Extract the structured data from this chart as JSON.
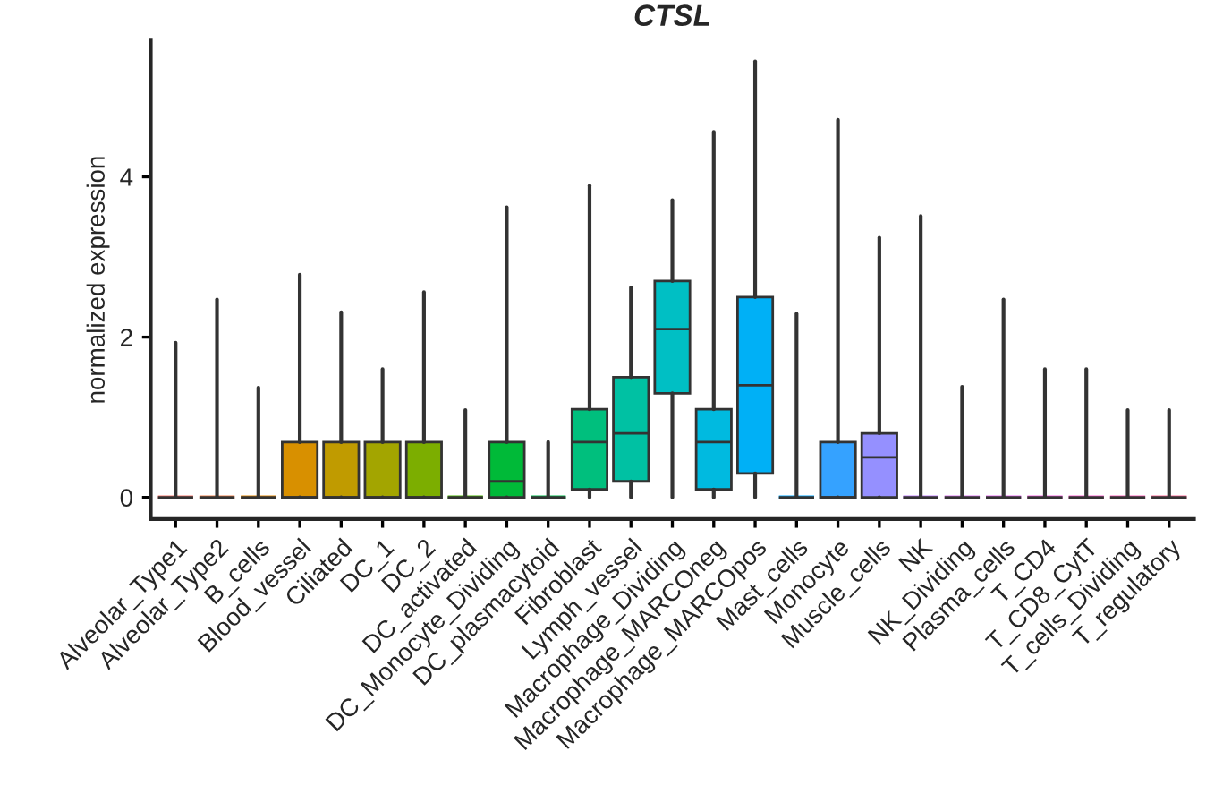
{
  "chart_data": {
    "type": "box",
    "title": "CTSL",
    "ylabel": "normalized expression",
    "categories": [
      "Alveolar_Type1",
      "Alveolar_Type2",
      "B_cells",
      "Blood_vessel",
      "Ciliated",
      "DC_1",
      "DC_2",
      "DC_activated",
      "DC_Monocyte_Dividing",
      "DC_plasmacytoid",
      "Fibroblast",
      "Lymph_vessel",
      "Macrophage_Dividing",
      "Macrophage_MARCOneg",
      "Macrophage_MARCOpos",
      "Mast_cells",
      "Monocyte",
      "Muscle_cells",
      "NK",
      "NK_Dividing",
      "Plasma_cells",
      "T_CD4",
      "T_CD8_CytT",
      "T_cells_Dividing",
      "T_regulatory"
    ],
    "colors": [
      "#f8766d",
      "#ef7f49",
      "#e58700",
      "#d89000",
      "#c09b00",
      "#a3a500",
      "#7cae00",
      "#49b500",
      "#00ba38",
      "#00bb4e",
      "#00bf7d",
      "#00c1a3",
      "#00bfc4",
      "#00bae0",
      "#00b0f6",
      "#00a6ff",
      "#35a2ff",
      "#9590ff",
      "#c280ff",
      "#de77f3",
      "#e76bf3",
      "#f564e3",
      "#fd61d1",
      "#ff62bc",
      "#ff6a98"
    ],
    "boxes": [
      {
        "low": 0,
        "q1": 0,
        "median": 0,
        "q3": 0,
        "high": 1.93
      },
      {
        "low": 0,
        "q1": 0,
        "median": 0,
        "q3": 0,
        "high": 2.47
      },
      {
        "low": 0,
        "q1": 0,
        "median": 0,
        "q3": 0,
        "high": 1.37
      },
      {
        "low": 0,
        "q1": 0,
        "median": 0,
        "q3": 0.69,
        "high": 2.78
      },
      {
        "low": 0,
        "q1": 0,
        "median": 0,
        "q3": 0.69,
        "high": 2.31
      },
      {
        "low": 0,
        "q1": 0,
        "median": 0,
        "q3": 0.69,
        "high": 1.6
      },
      {
        "low": 0,
        "q1": 0,
        "median": 0,
        "q3": 0.69,
        "high": 2.56
      },
      {
        "low": 0,
        "q1": 0,
        "median": 0,
        "q3": 0,
        "high": 1.09
      },
      {
        "low": 0,
        "q1": 0,
        "median": 0.2,
        "q3": 0.69,
        "high": 3.62
      },
      {
        "low": 0,
        "q1": 0,
        "median": 0,
        "q3": 0,
        "high": 0.69
      },
      {
        "low": 0,
        "q1": 0.1,
        "median": 0.69,
        "q3": 1.1,
        "high": 3.89
      },
      {
        "low": 0,
        "q1": 0.2,
        "median": 0.8,
        "q3": 1.5,
        "high": 2.62
      },
      {
        "low": 0,
        "q1": 1.3,
        "median": 2.1,
        "q3": 2.7,
        "high": 3.71
      },
      {
        "low": 0,
        "q1": 0.1,
        "median": 0.69,
        "q3": 1.1,
        "high": 4.56
      },
      {
        "low": 0,
        "q1": 0.3,
        "median": 1.4,
        "q3": 2.5,
        "high": 5.44
      },
      {
        "low": 0,
        "q1": 0,
        "median": 0,
        "q3": 0,
        "high": 2.29
      },
      {
        "low": 0,
        "q1": 0,
        "median": 0,
        "q3": 0.69,
        "high": 4.71
      },
      {
        "low": 0,
        "q1": 0,
        "median": 0.5,
        "q3": 0.8,
        "high": 3.24
      },
      {
        "low": 0,
        "q1": 0,
        "median": 0,
        "q3": 0,
        "high": 3.51
      },
      {
        "low": 0,
        "q1": 0,
        "median": 0,
        "q3": 0,
        "high": 1.38
      },
      {
        "low": 0,
        "q1": 0,
        "median": 0,
        "q3": 0,
        "high": 2.47
      },
      {
        "low": 0,
        "q1": 0,
        "median": 0,
        "q3": 0,
        "high": 1.6
      },
      {
        "low": 0,
        "q1": 0,
        "median": 0,
        "q3": 0,
        "high": 1.6
      },
      {
        "low": 0,
        "q1": 0,
        "median": 0,
        "q3": 0,
        "high": 1.09
      },
      {
        "low": 0,
        "q1": 0,
        "median": 0,
        "q3": 0,
        "high": 1.09
      }
    ],
    "ylim": [
      -0.27,
      5.7
    ],
    "yticks": [
      0,
      2,
      4
    ],
    "grid": false
  }
}
